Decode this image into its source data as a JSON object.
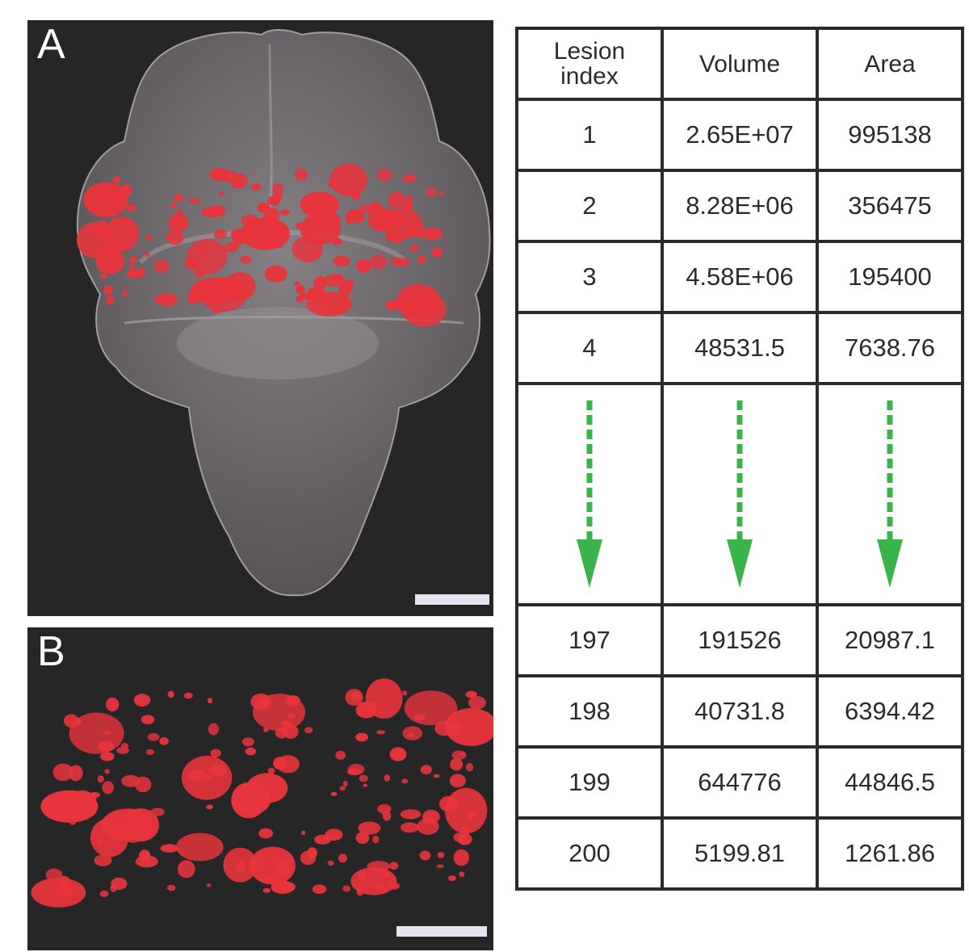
{
  "figure": {
    "panel_a": {
      "label": "A"
    },
    "panel_b": {
      "label": "B"
    }
  },
  "table": {
    "headers": [
      "Lesion\nindex",
      "Volume",
      "Area"
    ],
    "rows_top": [
      [
        "1",
        "2.65E+07",
        "995138"
      ],
      [
        "2",
        "8.28E+06",
        "356475"
      ],
      [
        "3",
        "4.58E+06",
        "195400"
      ],
      [
        "4",
        "48531.5",
        "7638.76"
      ]
    ],
    "rows_bottom": [
      [
        "197",
        "191526",
        "20987.1"
      ],
      [
        "198",
        "40731.8",
        "6394.42"
      ],
      [
        "199",
        "644776",
        "44846.5"
      ],
      [
        "200",
        "5199.81",
        "1261.86"
      ]
    ]
  },
  "colors": {
    "lesion_red": "#e8343c",
    "arrow_green": "#3ab44a",
    "panel_background": "#262626",
    "brain_gray": "#6e6a6d",
    "scale_bar": "#e4e4ee"
  }
}
